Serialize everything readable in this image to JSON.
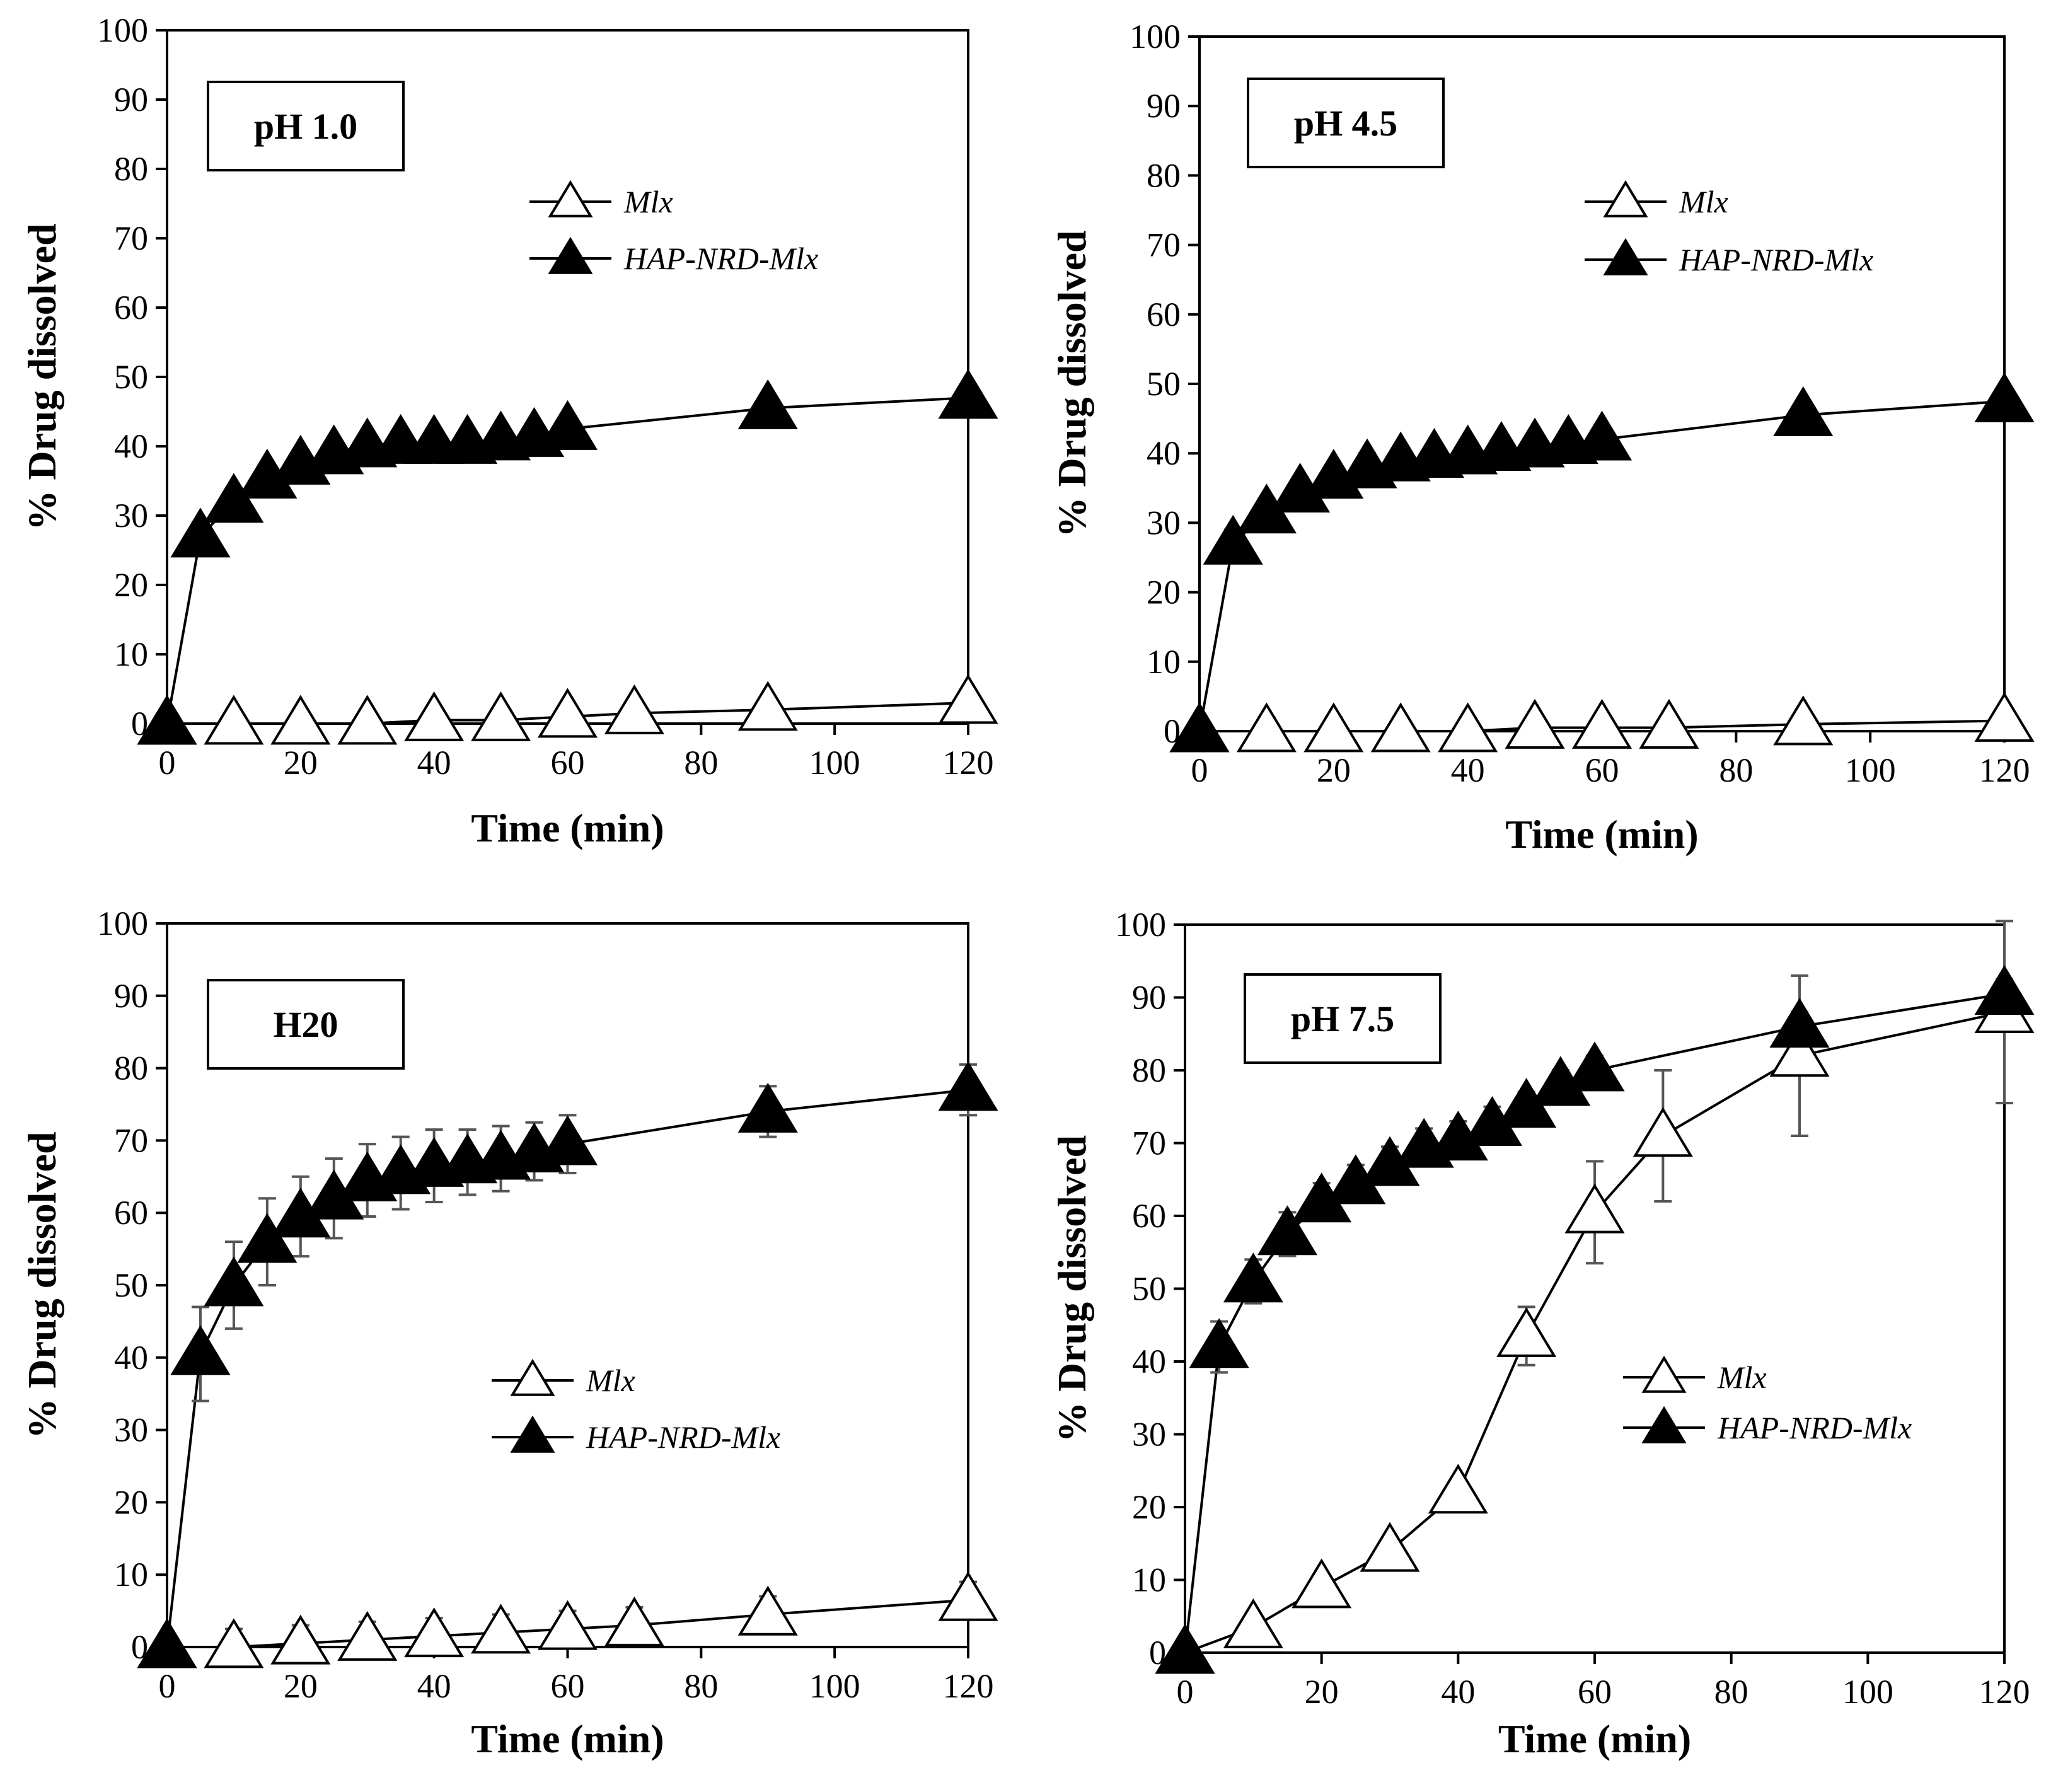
{
  "chart_data": [
    {
      "type": "line",
      "panel_label": "pH 1.0",
      "xlabel": "Time (min)",
      "ylabel": "% Drug dissolved",
      "xlim": [
        0,
        120
      ],
      "ylim": [
        0,
        100
      ],
      "x_ticks": [
        "0",
        "20",
        "40",
        "60",
        "80",
        "100",
        "120"
      ],
      "y_ticks": [
        "0",
        "10",
        "20",
        "30",
        "40",
        "50",
        "60",
        "70",
        "80",
        "90",
        "100"
      ],
      "legend_position": "upper-center",
      "series": [
        {
          "name": "Mlx",
          "marker": "open-triangle",
          "x": [
            0,
            10,
            20,
            30,
            40,
            50,
            60,
            70,
            90,
            120
          ],
          "y": [
            0,
            0,
            0,
            0,
            0.5,
            0.5,
            1,
            1.5,
            2,
            3
          ],
          "err": [
            0,
            1.5,
            1.5,
            1.5,
            1.5,
            1.5,
            1.5,
            1.5,
            1.5,
            1.5
          ]
        },
        {
          "name": "HAP-NRD-Mlx",
          "marker": "filled-triangle",
          "x": [
            0,
            5,
            10,
            15,
            20,
            25,
            30,
            35,
            40,
            45,
            50,
            55,
            60,
            90,
            120
          ],
          "y": [
            0,
            27,
            32,
            35.5,
            37.5,
            39,
            40,
            40.5,
            40.5,
            40.5,
            41,
            41.5,
            42.5,
            45.5,
            47
          ],
          "err": [
            0,
            2,
            2,
            1.5,
            1.5,
            1.5,
            1.5,
            1.5,
            1.5,
            1.5,
            1.5,
            1.5,
            1.5,
            1,
            1
          ]
        }
      ]
    },
    {
      "type": "line",
      "panel_label": "pH 4.5",
      "xlabel": "Time (min)",
      "ylabel": "% Drug dissolved",
      "xlim": [
        0,
        120
      ],
      "ylim": [
        0,
        100
      ],
      "x_ticks": [
        "0",
        "20",
        "40",
        "60",
        "80",
        "100",
        "120"
      ],
      "y_ticks": [
        "0",
        "10",
        "20",
        "30",
        "40",
        "50",
        "60",
        "70",
        "80",
        "90",
        "100"
      ],
      "legend_position": "upper-right",
      "series": [
        {
          "name": "Mlx",
          "marker": "open-triangle",
          "x": [
            0,
            10,
            20,
            30,
            40,
            50,
            60,
            70,
            90,
            120
          ],
          "y": [
            0,
            0,
            0,
            0,
            0,
            0.5,
            0.5,
            0.5,
            1,
            1.5
          ],
          "err": [
            0,
            2,
            2,
            1.5,
            1.5,
            1.5,
            1.5,
            1.5,
            1.5,
            1.5
          ]
        },
        {
          "name": "HAP-NRD-Mlx",
          "marker": "filled-triangle",
          "x": [
            0,
            5,
            10,
            15,
            20,
            25,
            30,
            35,
            40,
            45,
            50,
            55,
            60,
            90,
            120
          ],
          "y": [
            0,
            27,
            31.5,
            34.5,
            36.5,
            38,
            39,
            39.5,
            40,
            40.5,
            41,
            41.5,
            42,
            45.5,
            47.5
          ],
          "err": [
            0,
            2,
            2,
            2,
            1.5,
            2,
            1.5,
            1.5,
            1.5,
            1.5,
            1.5,
            1.5,
            1.5,
            1,
            1
          ]
        }
      ]
    },
    {
      "type": "line",
      "panel_label": "H20",
      "xlabel": "Time (min)",
      "ylabel": "% Drug dissolved",
      "xlim": [
        0,
        120
      ],
      "ylim": [
        0,
        100
      ],
      "x_ticks": [
        "0",
        "20",
        "40",
        "60",
        "80",
        "100",
        "120"
      ],
      "y_ticks": [
        "0",
        "10",
        "20",
        "30",
        "40",
        "50",
        "60",
        "70",
        "80",
        "90",
        "100"
      ],
      "legend_position": "lower-center",
      "series": [
        {
          "name": "Mlx",
          "marker": "open-triangle",
          "x": [
            0,
            10,
            20,
            30,
            40,
            50,
            60,
            70,
            90,
            120
          ],
          "y": [
            0,
            0,
            0.5,
            1,
            1.5,
            2,
            2.5,
            3,
            4.5,
            6.5
          ],
          "err": [
            0,
            2.5,
            2.5,
            2.5,
            2.5,
            2.5,
            2.5,
            2.5,
            2.5,
            2.5
          ]
        },
        {
          "name": "HAP-NRD-Mlx",
          "marker": "filled-triangle",
          "x": [
            0,
            5,
            10,
            15,
            20,
            25,
            30,
            35,
            40,
            45,
            50,
            55,
            60,
            90,
            120
          ],
          "y": [
            0,
            40.5,
            50,
            56,
            59.5,
            62,
            64.5,
            65.5,
            66.5,
            67,
            67.5,
            68.5,
            69.5,
            74,
            77
          ],
          "err": [
            0,
            6.5,
            6,
            6,
            5.5,
            5.5,
            5,
            5,
            5,
            4.5,
            4.5,
            4,
            4,
            3.5,
            3.5
          ]
        }
      ]
    },
    {
      "type": "line",
      "panel_label": "pH 7.5",
      "xlabel": "Time (min)",
      "ylabel": "% Drug dissolved",
      "xlim": [
        0,
        120
      ],
      "ylim": [
        0,
        100
      ],
      "x_ticks": [
        "0",
        "20",
        "40",
        "60",
        "80",
        "100",
        "120"
      ],
      "y_ticks": [
        "0",
        "10",
        "20",
        "30",
        "40",
        "50",
        "60",
        "70",
        "80",
        "90",
        "100"
      ],
      "legend_position": "lower-right",
      "series": [
        {
          "name": "Mlx",
          "marker": "open-triangle",
          "x": [
            0,
            10,
            20,
            30,
            40,
            50,
            60,
            70,
            90,
            120
          ],
          "y": [
            0,
            3.5,
            9,
            14,
            22,
            43.5,
            60.5,
            71,
            82,
            88
          ],
          "err": [
            0,
            1,
            1,
            1,
            1.5,
            4,
            7,
            9,
            11,
            12.5
          ]
        },
        {
          "name": "HAP-NRD-Mlx",
          "marker": "filled-triangle",
          "x": [
            0,
            5,
            10,
            15,
            20,
            25,
            30,
            35,
            40,
            45,
            50,
            55,
            60,
            90,
            120
          ],
          "y": [
            0,
            42,
            51,
            57.5,
            62,
            64.5,
            67,
            69.5,
            70.5,
            72.5,
            75,
            78,
            80,
            86,
            90.5
          ],
          "err": [
            0,
            3.5,
            3,
            3,
            2.5,
            2.5,
            2.5,
            2.5,
            2.5,
            2.5,
            2,
            2,
            2,
            2,
            2
          ]
        }
      ]
    }
  ]
}
